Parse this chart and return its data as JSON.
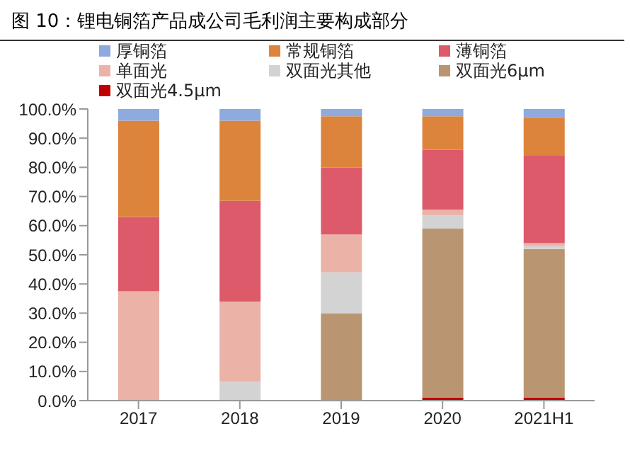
{
  "chart_data": {
    "type": "bar",
    "stacked": true,
    "title": "图 10：锂电铜箔产品成公司毛利润主要构成部分",
    "categories": [
      "2017",
      "2018",
      "2019",
      "2020",
      "2021H1"
    ],
    "series": [
      {
        "name": "双面光4.5μm",
        "color": "#c00000",
        "values": [
          0,
          0,
          0,
          1,
          1
        ]
      },
      {
        "name": "双面光6μm",
        "color": "#b99671",
        "values": [
          0,
          0,
          30,
          58,
          51
        ]
      },
      {
        "name": "双面光其他",
        "color": "#d3d3d3",
        "values": [
          0,
          6.5,
          14,
          4.5,
          1
        ]
      },
      {
        "name": "单面光",
        "color": "#ebb3a8",
        "values": [
          37.5,
          27.5,
          13,
          2,
          1
        ]
      },
      {
        "name": "薄铜箔",
        "color": "#dd5a6a",
        "values": [
          25.5,
          34.5,
          23,
          20.5,
          30
        ]
      },
      {
        "name": "常规铜箔",
        "color": "#dd843c",
        "values": [
          33,
          27.5,
          17.5,
          11.5,
          13
        ]
      },
      {
        "name": "厚铜箔",
        "color": "#8faadc",
        "values": [
          4,
          4,
          2.5,
          2.5,
          3
        ]
      }
    ],
    "ylim": [
      0,
      100
    ],
    "yticks": [
      {
        "value": 0,
        "label": "0.0%"
      },
      {
        "value": 10,
        "label": "10.0%"
      },
      {
        "value": 20,
        "label": "20.0%"
      },
      {
        "value": 30,
        "label": "30.0%"
      },
      {
        "value": 40,
        "label": "40.0%"
      },
      {
        "value": 50,
        "label": "50.0%"
      },
      {
        "value": 60,
        "label": "60.0%"
      },
      {
        "value": 70,
        "label": "70.0%"
      },
      {
        "value": 80,
        "label": "80.0%"
      },
      {
        "value": 90,
        "label": "90.0%"
      },
      {
        "value": 100,
        "label": "100.0%"
      }
    ],
    "grid": false,
    "legend": "top"
  }
}
